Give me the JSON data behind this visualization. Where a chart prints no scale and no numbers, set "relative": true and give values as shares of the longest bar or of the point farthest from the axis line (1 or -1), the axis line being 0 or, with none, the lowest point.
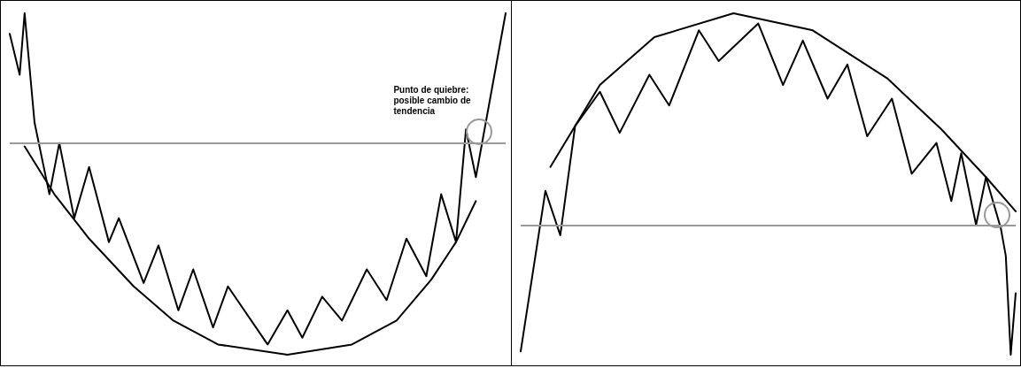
{
  "chart_data": [
    {
      "type": "line",
      "relative": true,
      "marker": "none",
      "line_style": "solid",
      "categories": [
        null,
        null,
        null,
        null,
        null,
        null,
        null,
        null,
        null,
        null,
        null,
        null,
        null,
        null,
        null,
        null,
        null,
        null,
        null,
        null,
        null,
        null,
        null,
        null,
        null,
        null,
        null,
        null,
        null,
        null,
        null,
        null,
        null,
        null,
        null,
        null,
        null,
        null,
        null,
        null,
        null,
        null,
        null,
        null,
        null,
        null,
        null,
        null,
        null,
        null,
        null,
        null,
        null,
        null,
        null,
        null,
        null,
        null,
        null,
        null,
        null,
        null,
        null,
        null,
        null,
        null,
        null,
        null,
        null,
        null,
        null,
        null,
        null,
        null,
        null,
        null,
        null,
        null,
        null,
        null,
        null,
        null,
        null,
        null,
        null,
        null,
        null,
        null,
        null,
        null,
        null,
        null,
        null,
        null,
        null,
        null,
        null,
        null,
        null,
        null,
        null
      ],
      "series": [
        {
          "color": "#000000",
          "values": [
            0.94,
            null,
            0.82,
            1,
            null,
            0.68,
            null,
            null,
            0.47,
            null,
            0.62,
            null,
            null,
            0.4,
            null,
            null,
            0.55,
            null,
            null,
            null,
            0.33,
            null,
            0.4,
            null,
            null,
            null,
            null,
            0.21,
            null,
            null,
            0.32,
            null,
            null,
            null,
            0.13,
            null,
            null,
            0.25,
            null,
            null,
            null,
            0.08,
            null,
            null,
            0.2,
            null,
            null,
            null,
            null,
            null,
            null,
            null,
            0.03,
            null,
            null,
            null,
            0.13,
            null,
            null,
            0.05,
            null,
            null,
            null,
            0.17,
            null,
            null,
            null,
            0.1,
            null,
            null,
            null,
            null,
            0.25,
            null,
            null,
            null,
            0.16,
            null,
            null,
            null,
            0.34,
            null,
            null,
            null,
            0.23,
            null,
            null,
            0.47,
            null,
            null,
            0.33,
            null,
            0.66,
            null,
            0.52,
            null,
            null,
            null,
            null,
            null,
            1.0
          ]
        },
        {
          "color": "#000000",
          "values": [
            null,
            null,
            null,
            0.61,
            null,
            null,
            null,
            null,
            null,
            0.47,
            null,
            null,
            null,
            null,
            null,
            null,
            0.34,
            null,
            null,
            null,
            null,
            null,
            null,
            null,
            null,
            0.2,
            null,
            null,
            null,
            null,
            null,
            null,
            null,
            0.1,
            null,
            null,
            null,
            null,
            null,
            null,
            null,
            null,
            0.03,
            null,
            null,
            null,
            null,
            null,
            null,
            null,
            null,
            null,
            null,
            null,
            null,
            null,
            0,
            null,
            null,
            null,
            null,
            null,
            null,
            null,
            null,
            null,
            null,
            null,
            null,
            0.03,
            null,
            null,
            null,
            null,
            null,
            null,
            null,
            null,
            0.1,
            null,
            null,
            null,
            null,
            null,
            null,
            0.22,
            null,
            null,
            null,
            null,
            0.33,
            null,
            null,
            null,
            0.45,
            null,
            null,
            null,
            null,
            null,
            null
          ]
        }
      ],
      "ref_lines": [
        {
          "axis": "y",
          "value": 0.62,
          "color": "#999999"
        }
      ],
      "annotations": [
        "Punto de quiebre:\nposible cambio de\ntendencia"
      ]
    },
    {
      "type": "line",
      "relative": true,
      "marker": "none",
      "line_style": "solid",
      "categories": [
        null,
        null,
        null,
        null,
        null,
        null,
        null,
        null,
        null,
        null,
        null,
        null,
        null,
        null,
        null,
        null,
        null,
        null,
        null,
        null,
        null,
        null,
        null,
        null,
        null,
        null,
        null,
        null,
        null,
        null,
        null,
        null,
        null,
        null,
        null,
        null,
        null,
        null,
        null,
        null,
        null,
        null,
        null,
        null,
        null,
        null,
        null,
        null,
        null,
        null,
        null,
        null,
        null,
        null,
        null,
        null,
        null,
        null,
        null,
        null,
        null,
        null,
        null,
        null,
        null,
        null,
        null,
        null,
        null,
        null,
        null,
        null,
        null,
        null,
        null,
        null,
        null,
        null,
        null,
        null,
        null,
        null,
        null,
        null,
        null,
        null,
        null,
        null,
        null,
        null,
        null,
        null,
        null,
        null,
        null,
        null,
        null,
        null,
        null,
        null,
        null
      ],
      "series": [
        {
          "color": "#000000",
          "values": [
            0.01,
            null,
            null,
            null,
            null,
            0.48,
            null,
            null,
            0.35,
            null,
            null,
            0.67,
            null,
            null,
            null,
            null,
            0.77,
            null,
            null,
            null,
            0.65,
            null,
            null,
            null,
            null,
            null,
            0.82,
            null,
            null,
            null,
            0.73,
            null,
            null,
            null,
            null,
            null,
            0.95,
            null,
            null,
            null,
            0.86,
            null,
            null,
            null,
            null,
            null,
            null,
            null,
            0.97,
            null,
            null,
            null,
            null,
            0.79,
            null,
            null,
            null,
            0.92,
            null,
            null,
            null,
            null,
            0.75,
            null,
            null,
            null,
            0.85,
            null,
            null,
            null,
            0.64,
            null,
            null,
            null,
            null,
            0.75,
            null,
            null,
            null,
            0.53,
            null,
            null,
            null,
            null,
            0.62,
            null,
            null,
            0.45,
            null,
            0.59,
            null,
            null,
            0.38,
            null,
            0.52,
            null,
            null,
            0.37,
            0.29,
            0,
            0.18
          ]
        },
        {
          "color": "#000000",
          "values": [
            null,
            null,
            null,
            null,
            null,
            null,
            0.55,
            null,
            null,
            null,
            null,
            null,
            null,
            null,
            null,
            null,
            0.79,
            null,
            null,
            null,
            null,
            null,
            null,
            null,
            null,
            null,
            null,
            0.93,
            null,
            null,
            null,
            null,
            null,
            null,
            null,
            null,
            null,
            null,
            null,
            null,
            null,
            null,
            null,
            1,
            null,
            null,
            null,
            null,
            null,
            null,
            null,
            null,
            null,
            null,
            null,
            null,
            null,
            null,
            null,
            0.95,
            null,
            null,
            null,
            null,
            null,
            null,
            null,
            null,
            null,
            null,
            null,
            null,
            null,
            null,
            0.81,
            null,
            null,
            null,
            null,
            null,
            null,
            null,
            null,
            null,
            null,
            0.66,
            null,
            null,
            null,
            null,
            null,
            null,
            null,
            null,
            0.52,
            null,
            null,
            null,
            null,
            null,
            0.42
          ]
        }
      ],
      "ref_lines": [
        {
          "axis": "y",
          "value": 0.375,
          "color": "#999999"
        }
      ]
    }
  ]
}
